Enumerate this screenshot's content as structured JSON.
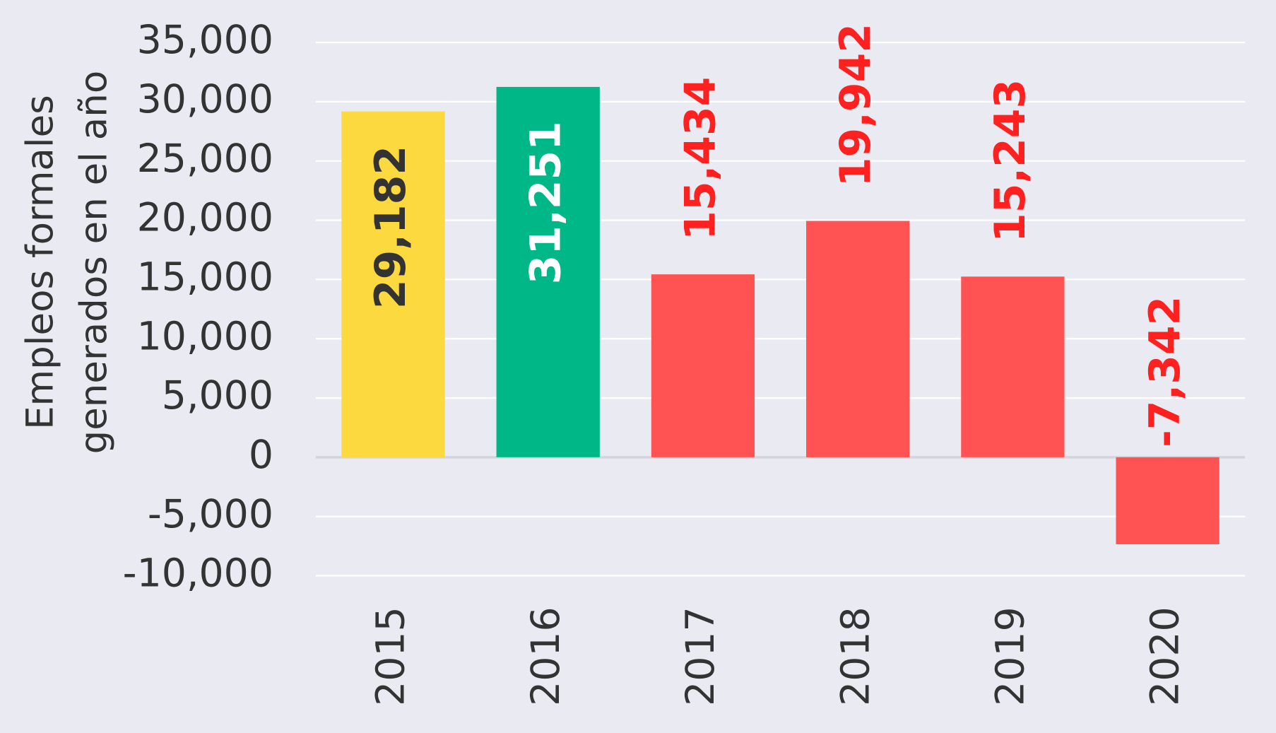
{
  "chart_data": {
    "type": "bar",
    "y_label": [
      "Empleos formales",
      "generados en el año"
    ],
    "categories": [
      "2015",
      "2016",
      "2017",
      "2018",
      "2019",
      "2020"
    ],
    "values": [
      29182,
      31251,
      15434,
      19942,
      15243,
      -7342
    ],
    "value_labels": [
      "29,182",
      "31,251",
      "15,434",
      "19,942",
      "15,243",
      "-7,342"
    ],
    "colors": [
      "#fdd940",
      "#00b887",
      "#ff5353",
      "#ff5353",
      "#ff5353",
      "#ff5353"
    ],
    "label_colors": [
      "#333333",
      "#ffffff",
      "#ff2020",
      "#ff2020",
      "#ff2020",
      "#ff2020"
    ],
    "label_inside": [
      true,
      true,
      false,
      false,
      false,
      false
    ],
    "ylim": [
      -10000,
      35000
    ],
    "yticks": [
      {
        "value": -10000,
        "label": "-10,000"
      },
      {
        "value": -5000,
        "label": "-5,000"
      },
      0,
      {
        "value": 5000,
        "label": "5,000"
      },
      {
        "value": 10000,
        "label": "10,000"
      },
      {
        "value": 15000,
        "label": "15,000"
      },
      {
        "value": 20000,
        "label": "20,000"
      },
      {
        "value": 25000,
        "label": "25,000"
      },
      {
        "value": 30000,
        "label": "30,000"
      },
      {
        "value": 35000,
        "label": "35,000"
      }
    ],
    "grid": true
  }
}
